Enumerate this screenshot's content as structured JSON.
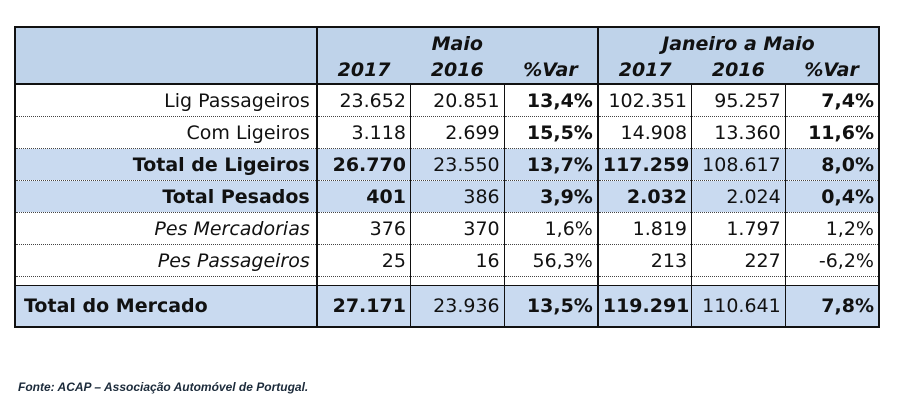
{
  "header": {
    "group1": "Maio",
    "group2": "Janeiro a Maio",
    "cols": [
      "2017",
      "2016",
      "%Var",
      "2017",
      "2016",
      "%Var"
    ]
  },
  "rows": [
    {
      "label": "Lig Passageiros",
      "values": [
        "23.652",
        "20.851",
        "13,4%",
        "102.351",
        "95.257",
        "7,4%"
      ]
    },
    {
      "label": "Com Ligeiros",
      "values": [
        "3.118",
        "2.699",
        "15,5%",
        "14.908",
        "13.360",
        "11,6%"
      ]
    },
    {
      "label": "Total de Ligeiros",
      "values": [
        "26.770",
        "23.550",
        "13,7%",
        "117.259",
        "108.617",
        "8,0%"
      ]
    },
    {
      "label": "Total Pesados",
      "values": [
        "401",
        "386",
        "3,9%",
        "2.032",
        "2.024",
        "0,4%"
      ]
    },
    {
      "label": "Pes Mercadorias",
      "values": [
        "376",
        "370",
        "1,6%",
        "1.819",
        "1.797",
        "1,2%"
      ]
    },
    {
      "label": "Pes Passageiros",
      "values": [
        "25",
        "16",
        "56,3%",
        "213",
        "227",
        "-6,2%"
      ]
    }
  ],
  "total": {
    "label": "Total do Mercado",
    "values": [
      "27.171",
      "23.936",
      "13,5%",
      "119.291",
      "110.641",
      "7,8%"
    ]
  },
  "source": "Fonte: ACAP – Associação Automóvel de Portugal."
}
